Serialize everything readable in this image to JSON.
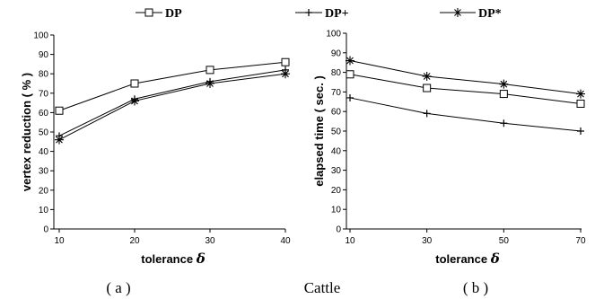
{
  "legend": [
    {
      "name": "DP",
      "marker": "square"
    },
    {
      "name": "DP+",
      "marker": "plus"
    },
    {
      "name": "DP*",
      "marker": "star"
    }
  ],
  "captions": {
    "a": "( a )",
    "center": "Cattle",
    "b": "( b )"
  },
  "chart_data": [
    {
      "type": "line",
      "xlabel": "tolerance",
      "xlabel_symbol": "δ",
      "ylabel": "vertex reduction ( % )",
      "categories": [
        "10",
        "20",
        "30",
        "40"
      ],
      "ylim": [
        0,
        100
      ],
      "yticks": [
        "0",
        "10",
        "20",
        "30",
        "40",
        "50",
        "60",
        "70",
        "80",
        "90",
        "100"
      ],
      "grid": false,
      "series": [
        {
          "name": "DP",
          "values": [
            61,
            75,
            82,
            86
          ]
        },
        {
          "name": "DP+",
          "values": [
            48,
            67,
            76,
            82
          ]
        },
        {
          "name": "DP*",
          "values": [
            46,
            66,
            75,
            80
          ]
        }
      ]
    },
    {
      "type": "line",
      "xlabel": "tolerance",
      "xlabel_symbol": "δ",
      "ylabel": "elapsed time ( sec. )",
      "categories": [
        "10",
        "30",
        "50",
        "70"
      ],
      "ylim": [
        0,
        100
      ],
      "yticks": [
        "0",
        "10",
        "20",
        "30",
        "40",
        "50",
        "60",
        "70",
        "80",
        "90",
        "100"
      ],
      "grid": false,
      "series": [
        {
          "name": "DP",
          "values": [
            79,
            72,
            69,
            64
          ]
        },
        {
          "name": "DP+",
          "values": [
            67,
            59,
            54,
            50
          ]
        },
        {
          "name": "DP*",
          "values": [
            86,
            78,
            74,
            69
          ]
        }
      ]
    }
  ]
}
